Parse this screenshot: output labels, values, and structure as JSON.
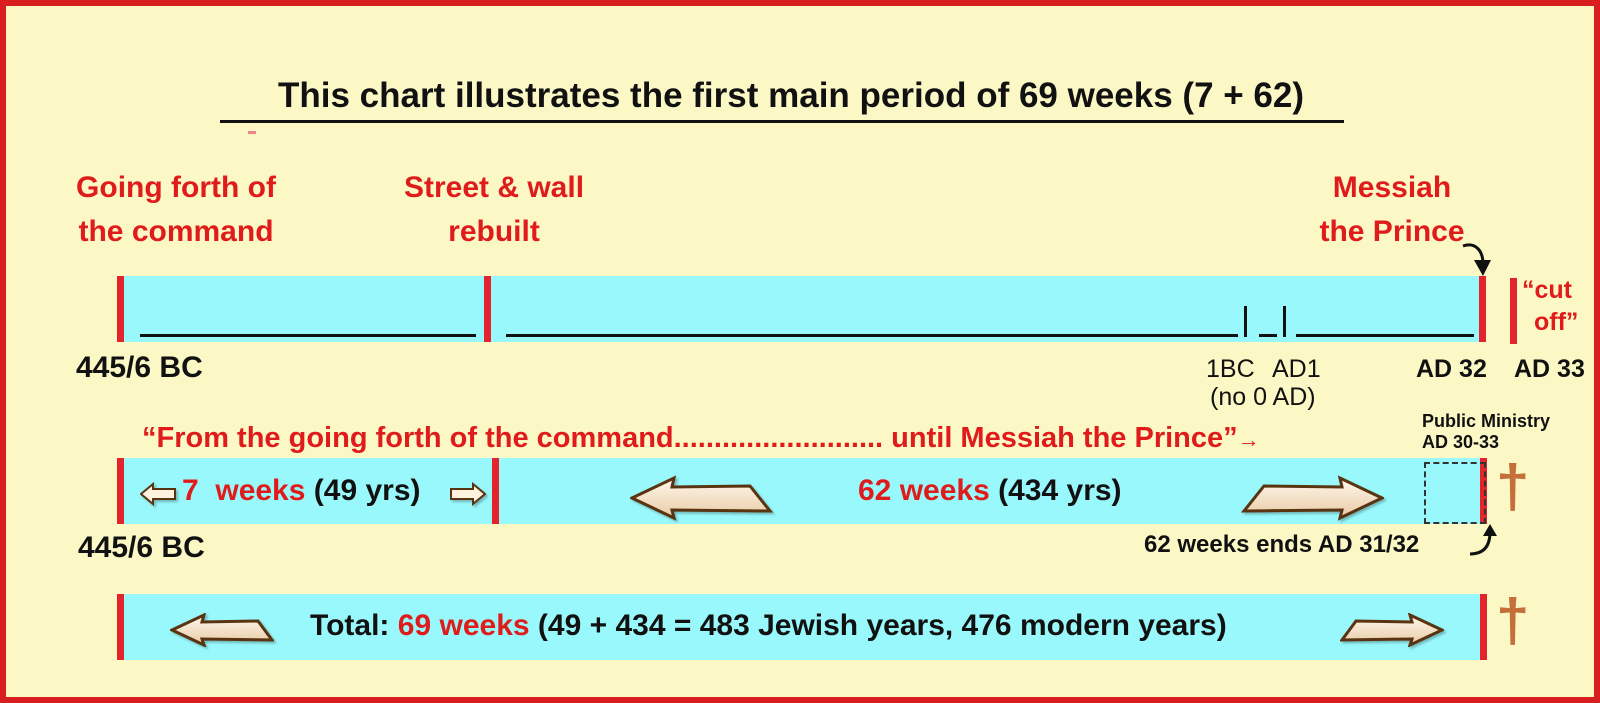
{
  "title": "This chart illustrates the first main period of 69 weeks (7 + 62)",
  "labels": {
    "going_forth_l1": "Going forth of",
    "going_forth_l2": "the command",
    "street_l1": "Street & wall",
    "street_l2": "rebuilt",
    "messiah_l1": "Messiah",
    "messiah_l2": "the Prince",
    "cut_off_l1": "“cut",
    "cut_off_l2": "off”"
  },
  "timeline": {
    "start_date": "445/6 BC",
    "bc1": "1BC",
    "ad1": "AD1",
    "no_zero": "(no 0 AD)",
    "ad32": "AD 32",
    "ad33": "AD 33"
  },
  "quote": {
    "text": "“From the going forth of the command.......................... until Messiah the Prince”",
    "arrow": "→",
    "ministry_l1": "Public Ministry",
    "ministry_l2": "AD 30-33"
  },
  "weeks_bar": {
    "start_date": "445/6 BC",
    "seven_weeks": "7  weeks",
    "seven_years": "(49 yrs)",
    "sixtytwo_weeks": "62 weeks",
    "sixtytwo_years": "(434 yrs)",
    "ends_note": "62 weeks ends AD 31/32"
  },
  "total_bar": {
    "prefix": "Total:",
    "weeks": "69 weeks",
    "detail": "(49 + 434 = 483 Jewish years, 476 modern years)"
  },
  "colors": {
    "frame": "#d81e1e",
    "background": "#fcf8c6",
    "bar": "#98f8fb",
    "accent_red": "#e01b1b",
    "cross": "#c5703a"
  }
}
